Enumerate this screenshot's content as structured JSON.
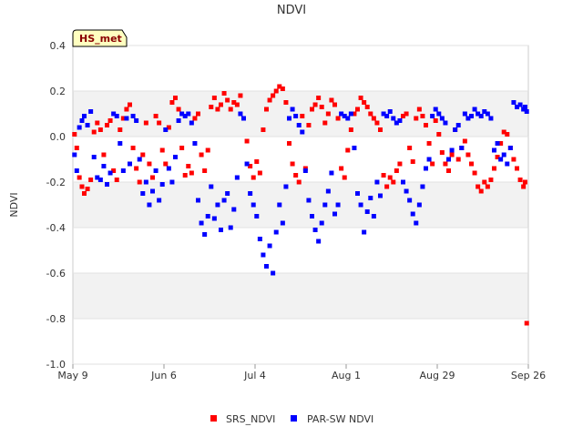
{
  "chart_data": {
    "type": "scatter",
    "title": "NDVI",
    "xlabel": "",
    "ylabel": "NDVI",
    "badge": "HS_met",
    "ylim": [
      -1.0,
      0.4
    ],
    "y_ticks": [
      0.4,
      0.2,
      0.0,
      -0.2,
      -0.4,
      -0.6,
      -0.8,
      -1.0
    ],
    "y_tick_labels": [
      "0.4",
      "0.2",
      "0.0",
      "-0.2",
      "-0.4",
      "-0.6",
      "-0.8",
      "-1.0"
    ],
    "xlim_days": [
      0,
      140
    ],
    "x_ticks": [
      {
        "day": 0,
        "label": "May 9"
      },
      {
        "day": 28,
        "label": "Jun 6"
      },
      {
        "day": 56,
        "label": "Jul 4"
      },
      {
        "day": 84,
        "label": "Aug 1"
      },
      {
        "day": 112,
        "label": "Aug 29"
      },
      {
        "day": 140,
        "label": "Sep 26"
      }
    ],
    "series": [
      {
        "name": "SRS_NDVI",
        "color": "#ff0000",
        "points": [
          [
            0.5,
            0.01
          ],
          [
            1.2,
            -0.05
          ],
          [
            2.0,
            -0.18
          ],
          [
            2.8,
            -0.22
          ],
          [
            3.5,
            -0.25
          ],
          [
            4.5,
            -0.23
          ],
          [
            5.5,
            -0.19
          ],
          [
            6.5,
            0.02
          ],
          [
            7.5,
            0.06
          ],
          [
            8.5,
            0.03
          ],
          [
            9.5,
            -0.08
          ],
          [
            10.5,
            0.05
          ],
          [
            11.5,
            0.07
          ],
          [
            12.5,
            -0.15
          ],
          [
            13.5,
            -0.19
          ],
          [
            14.5,
            0.03
          ],
          [
            15.5,
            0.08
          ],
          [
            16.5,
            0.12
          ],
          [
            17.5,
            0.14
          ],
          [
            18.5,
            -0.05
          ],
          [
            19.5,
            -0.14
          ],
          [
            20.5,
            -0.2
          ],
          [
            21.5,
            -0.08
          ],
          [
            22.5,
            0.06
          ],
          [
            23.5,
            -0.12
          ],
          [
            24.5,
            -0.18
          ],
          [
            25.5,
            0.09
          ],
          [
            26.5,
            0.06
          ],
          [
            27.5,
            -0.06
          ],
          [
            28.5,
            -0.12
          ],
          [
            29.5,
            0.04
          ],
          [
            30.5,
            0.15
          ],
          [
            31.5,
            0.17
          ],
          [
            32.5,
            0.12
          ],
          [
            33.5,
            -0.05
          ],
          [
            34.5,
            -0.17
          ],
          [
            35.5,
            -0.13
          ],
          [
            36.5,
            -0.16
          ],
          [
            37.5,
            0.08
          ],
          [
            38.5,
            0.1
          ],
          [
            39.5,
            -0.08
          ],
          [
            40.5,
            -0.15
          ],
          [
            41.5,
            -0.06
          ],
          [
            42.5,
            0.13
          ],
          [
            43.5,
            0.17
          ],
          [
            44.5,
            0.12
          ],
          [
            45.5,
            0.14
          ],
          [
            46.5,
            0.19
          ],
          [
            47.5,
            0.16
          ],
          [
            48.5,
            0.12
          ],
          [
            49.5,
            0.15
          ],
          [
            50.5,
            0.14
          ],
          [
            51.5,
            0.18
          ],
          [
            52.5,
            0.08
          ],
          [
            53.5,
            -0.02
          ],
          [
            54.5,
            -0.13
          ],
          [
            55.5,
            -0.18
          ],
          [
            56.5,
            -0.11
          ],
          [
            57.5,
            -0.16
          ],
          [
            58.5,
            0.03
          ],
          [
            59.5,
            0.12
          ],
          [
            60.5,
            0.16
          ],
          [
            61.5,
            0.18
          ],
          [
            62.5,
            0.2
          ],
          [
            63.5,
            0.22
          ],
          [
            64.5,
            0.21
          ],
          [
            65.5,
            0.15
          ],
          [
            66.5,
            -0.03
          ],
          [
            67.5,
            -0.12
          ],
          [
            68.5,
            -0.17
          ],
          [
            69.5,
            -0.2
          ],
          [
            70.5,
            0.09
          ],
          [
            71.5,
            -0.14
          ],
          [
            72.5,
            0.05
          ],
          [
            73.5,
            0.12
          ],
          [
            74.5,
            0.14
          ],
          [
            75.5,
            0.17
          ],
          [
            76.5,
            0.13
          ],
          [
            77.5,
            0.06
          ],
          [
            78.5,
            0.1
          ],
          [
            79.5,
            0.16
          ],
          [
            80.5,
            0.14
          ],
          [
            81.5,
            0.08
          ],
          [
            82.5,
            -0.14
          ],
          [
            83.5,
            -0.18
          ],
          [
            84.5,
            -0.06
          ],
          [
            85.5,
            0.03
          ],
          [
            86.5,
            0.1
          ],
          [
            87.5,
            0.12
          ],
          [
            88.5,
            0.17
          ],
          [
            89.5,
            0.15
          ],
          [
            90.5,
            0.13
          ],
          [
            91.5,
            0.1
          ],
          [
            92.5,
            0.08
          ],
          [
            93.5,
            0.06
          ],
          [
            94.5,
            0.03
          ],
          [
            95.5,
            -0.17
          ],
          [
            96.5,
            -0.22
          ],
          [
            97.5,
            -0.18
          ],
          [
            98.5,
            -0.2
          ],
          [
            99.5,
            -0.15
          ],
          [
            100.5,
            -0.12
          ],
          [
            101.5,
            0.09
          ],
          [
            102.5,
            0.1
          ],
          [
            103.5,
            -0.05
          ],
          [
            104.5,
            -0.11
          ],
          [
            105.5,
            0.08
          ],
          [
            106.5,
            0.12
          ],
          [
            107.5,
            0.09
          ],
          [
            108.5,
            0.05
          ],
          [
            109.5,
            -0.03
          ],
          [
            110.5,
            -0.12
          ],
          [
            111.5,
            0.07
          ],
          [
            112.5,
            0.01
          ],
          [
            113.5,
            -0.07
          ],
          [
            114.5,
            -0.12
          ],
          [
            115.5,
            -0.15
          ],
          [
            116.5,
            -0.08
          ],
          [
            117.5,
            0.03
          ],
          [
            118.5,
            -0.1
          ],
          [
            119.5,
            -0.05
          ],
          [
            120.5,
            -0.02
          ],
          [
            121.5,
            -0.08
          ],
          [
            122.5,
            -0.12
          ],
          [
            123.5,
            -0.16
          ],
          [
            124.5,
            -0.22
          ],
          [
            125.5,
            -0.24
          ],
          [
            126.5,
            -0.2
          ],
          [
            127.5,
            -0.22
          ],
          [
            128.5,
            -0.19
          ],
          [
            129.5,
            -0.14
          ],
          [
            130.5,
            -0.09
          ],
          [
            131.5,
            -0.03
          ],
          [
            132.5,
            0.02
          ],
          [
            133.5,
            0.01
          ],
          [
            134.5,
            -0.05
          ],
          [
            135.5,
            -0.1
          ],
          [
            136.5,
            -0.14
          ],
          [
            137.5,
            -0.19
          ],
          [
            138.5,
            -0.22
          ],
          [
            139.0,
            -0.2
          ],
          [
            139.5,
            -0.82
          ]
        ]
      },
      {
        "name": "PAR-SW NDVI",
        "color": "#0000ff",
        "points": [
          [
            0.5,
            -0.08
          ],
          [
            1.2,
            -0.15
          ],
          [
            2.0,
            0.04
          ],
          [
            2.8,
            0.07
          ],
          [
            3.5,
            0.09
          ],
          [
            4.5,
            0.05
          ],
          [
            5.5,
            0.11
          ],
          [
            6.5,
            -0.09
          ],
          [
            7.5,
            -0.18
          ],
          [
            8.5,
            -0.19
          ],
          [
            9.5,
            -0.13
          ],
          [
            10.5,
            -0.21
          ],
          [
            11.5,
            -0.16
          ],
          [
            12.5,
            0.1
          ],
          [
            13.5,
            0.09
          ],
          [
            14.5,
            -0.03
          ],
          [
            15.5,
            -0.15
          ],
          [
            16.5,
            0.08
          ],
          [
            17.5,
            -0.12
          ],
          [
            18.5,
            0.09
          ],
          [
            19.5,
            0.07
          ],
          [
            20.5,
            -0.1
          ],
          [
            21.5,
            -0.25
          ],
          [
            22.5,
            -0.2
          ],
          [
            23.5,
            -0.3
          ],
          [
            24.5,
            -0.24
          ],
          [
            25.5,
            -0.15
          ],
          [
            26.5,
            -0.28
          ],
          [
            27.5,
            -0.21
          ],
          [
            28.5,
            0.03
          ],
          [
            29.5,
            -0.14
          ],
          [
            30.5,
            -0.2
          ],
          [
            31.5,
            -0.09
          ],
          [
            32.5,
            0.07
          ],
          [
            33.5,
            0.1
          ],
          [
            34.5,
            0.09
          ],
          [
            35.5,
            0.1
          ],
          [
            36.5,
            0.06
          ],
          [
            37.5,
            -0.03
          ],
          [
            38.5,
            -0.28
          ],
          [
            39.5,
            -0.38
          ],
          [
            40.5,
            -0.43
          ],
          [
            41.5,
            -0.35
          ],
          [
            42.5,
            -0.22
          ],
          [
            43.5,
            -0.36
          ],
          [
            44.5,
            -0.3
          ],
          [
            45.5,
            -0.41
          ],
          [
            46.5,
            -0.28
          ],
          [
            47.5,
            -0.25
          ],
          [
            48.5,
            -0.4
          ],
          [
            49.5,
            -0.32
          ],
          [
            50.5,
            -0.18
          ],
          [
            51.5,
            0.1
          ],
          [
            52.5,
            0.08
          ],
          [
            53.5,
            -0.12
          ],
          [
            54.5,
            -0.25
          ],
          [
            55.5,
            -0.3
          ],
          [
            56.5,
            -0.35
          ],
          [
            57.5,
            -0.45
          ],
          [
            58.5,
            -0.52
          ],
          [
            59.5,
            -0.57
          ],
          [
            60.5,
            -0.48
          ],
          [
            61.5,
            -0.6
          ],
          [
            62.5,
            -0.42
          ],
          [
            63.5,
            -0.3
          ],
          [
            64.5,
            -0.38
          ],
          [
            65.5,
            -0.22
          ],
          [
            66.5,
            0.08
          ],
          [
            67.5,
            0.12
          ],
          [
            68.5,
            0.09
          ],
          [
            69.5,
            0.05
          ],
          [
            70.5,
            0.02
          ],
          [
            71.5,
            -0.15
          ],
          [
            72.5,
            -0.28
          ],
          [
            73.5,
            -0.35
          ],
          [
            74.5,
            -0.41
          ],
          [
            75.5,
            -0.46
          ],
          [
            76.5,
            -0.38
          ],
          [
            77.5,
            -0.3
          ],
          [
            78.5,
            -0.24
          ],
          [
            79.5,
            -0.16
          ],
          [
            80.5,
            -0.34
          ],
          [
            81.5,
            -0.3
          ],
          [
            82.5,
            0.1
          ],
          [
            83.5,
            0.09
          ],
          [
            84.5,
            0.08
          ],
          [
            85.5,
            0.1
          ],
          [
            86.5,
            -0.05
          ],
          [
            87.5,
            -0.25
          ],
          [
            88.5,
            -0.3
          ],
          [
            89.5,
            -0.42
          ],
          [
            90.5,
            -0.33
          ],
          [
            91.5,
            -0.27
          ],
          [
            92.5,
            -0.35
          ],
          [
            93.5,
            -0.2
          ],
          [
            94.5,
            -0.26
          ],
          [
            95.5,
            0.1
          ],
          [
            96.5,
            0.09
          ],
          [
            97.5,
            0.11
          ],
          [
            98.5,
            0.08
          ],
          [
            99.5,
            0.06
          ],
          [
            100.5,
            0.07
          ],
          [
            101.5,
            -0.2
          ],
          [
            102.5,
            -0.24
          ],
          [
            103.5,
            -0.28
          ],
          [
            104.5,
            -0.34
          ],
          [
            105.5,
            -0.38
          ],
          [
            106.5,
            -0.3
          ],
          [
            107.5,
            -0.22
          ],
          [
            108.5,
            -0.14
          ],
          [
            109.5,
            -0.1
          ],
          [
            110.5,
            0.09
          ],
          [
            111.5,
            0.12
          ],
          [
            112.5,
            0.1
          ],
          [
            113.5,
            0.08
          ],
          [
            114.5,
            0.06
          ],
          [
            115.5,
            -0.1
          ],
          [
            116.5,
            -0.06
          ],
          [
            117.5,
            0.03
          ],
          [
            118.5,
            0.05
          ],
          [
            119.5,
            -0.05
          ],
          [
            120.5,
            0.1
          ],
          [
            121.5,
            0.08
          ],
          [
            122.5,
            0.09
          ],
          [
            123.5,
            0.12
          ],
          [
            124.5,
            0.1
          ],
          [
            125.5,
            0.09
          ],
          [
            126.5,
            0.11
          ],
          [
            127.5,
            0.1
          ],
          [
            128.5,
            0.08
          ],
          [
            129.5,
            -0.06
          ],
          [
            130.5,
            -0.03
          ],
          [
            131.5,
            -0.1
          ],
          [
            132.5,
            -0.08
          ],
          [
            133.5,
            -0.12
          ],
          [
            134.5,
            -0.05
          ],
          [
            135.5,
            0.15
          ],
          [
            136.5,
            0.13
          ],
          [
            137.5,
            0.14
          ],
          [
            138.5,
            0.12
          ],
          [
            139.0,
            0.13
          ],
          [
            139.5,
            0.11
          ]
        ]
      }
    ],
    "legend_position": "bottom-center"
  }
}
